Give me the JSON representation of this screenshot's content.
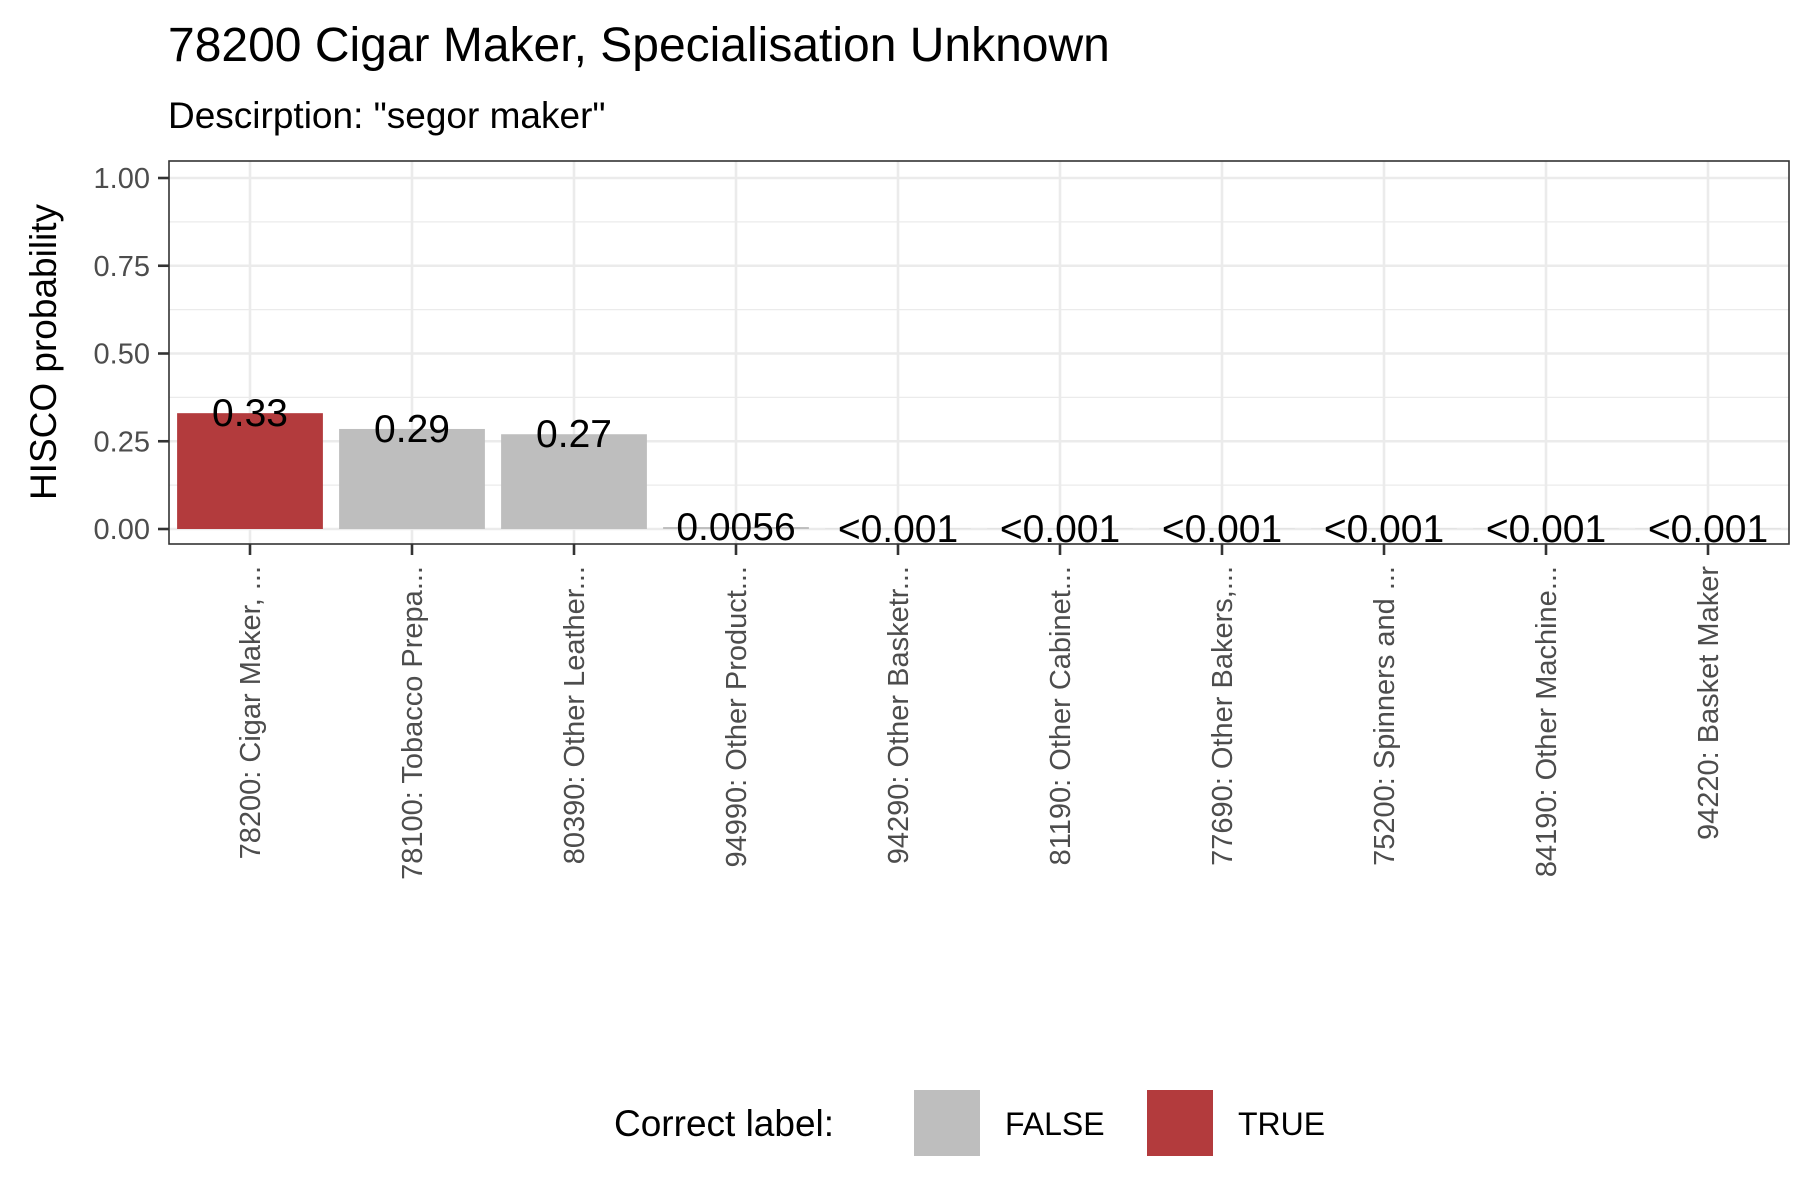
{
  "chart_data": {
    "type": "bar",
    "title": "78200 Cigar Maker, Specialisation Unknown",
    "subtitle": "Descirption: \"segor maker\"",
    "ylabel": "HISCO probability",
    "xlabel": "",
    "ylim": [
      0,
      1
    ],
    "y_ticks": [
      "0.00",
      "0.25",
      "0.50",
      "0.75",
      "1.00"
    ],
    "grid": true,
    "legend_placement": "bottom",
    "categories": [
      "78200: Cigar Maker, ...",
      "78100: Tobacco Prepa...",
      "80390: Other Leather...",
      "94990: Other Product...",
      "94290: Other Basketr...",
      "81190: Other Cabinet...",
      "77690: Other Bakers,...",
      "75200: Spinners and ...",
      "84190: Other Machine...",
      "94220: Basket Maker"
    ],
    "values": [
      0.33,
      0.285,
      0.27,
      0.0056,
      0.0005,
      0.0005,
      0.0005,
      0.0005,
      0.0005,
      0.0005
    ],
    "labels": [
      "0.33",
      "0.29",
      "0.27",
      "0.0056",
      "<0.001",
      "<0.001",
      "<0.001",
      "<0.001",
      "<0.001",
      "<0.001"
    ],
    "correct": [
      true,
      false,
      false,
      false,
      false,
      false,
      false,
      false,
      false,
      false
    ],
    "legend": {
      "title": "Correct label:",
      "entries": [
        {
          "label": "FALSE",
          "color": "#bebebe"
        },
        {
          "label": "TRUE",
          "color": "#b33b3d"
        }
      ]
    }
  }
}
